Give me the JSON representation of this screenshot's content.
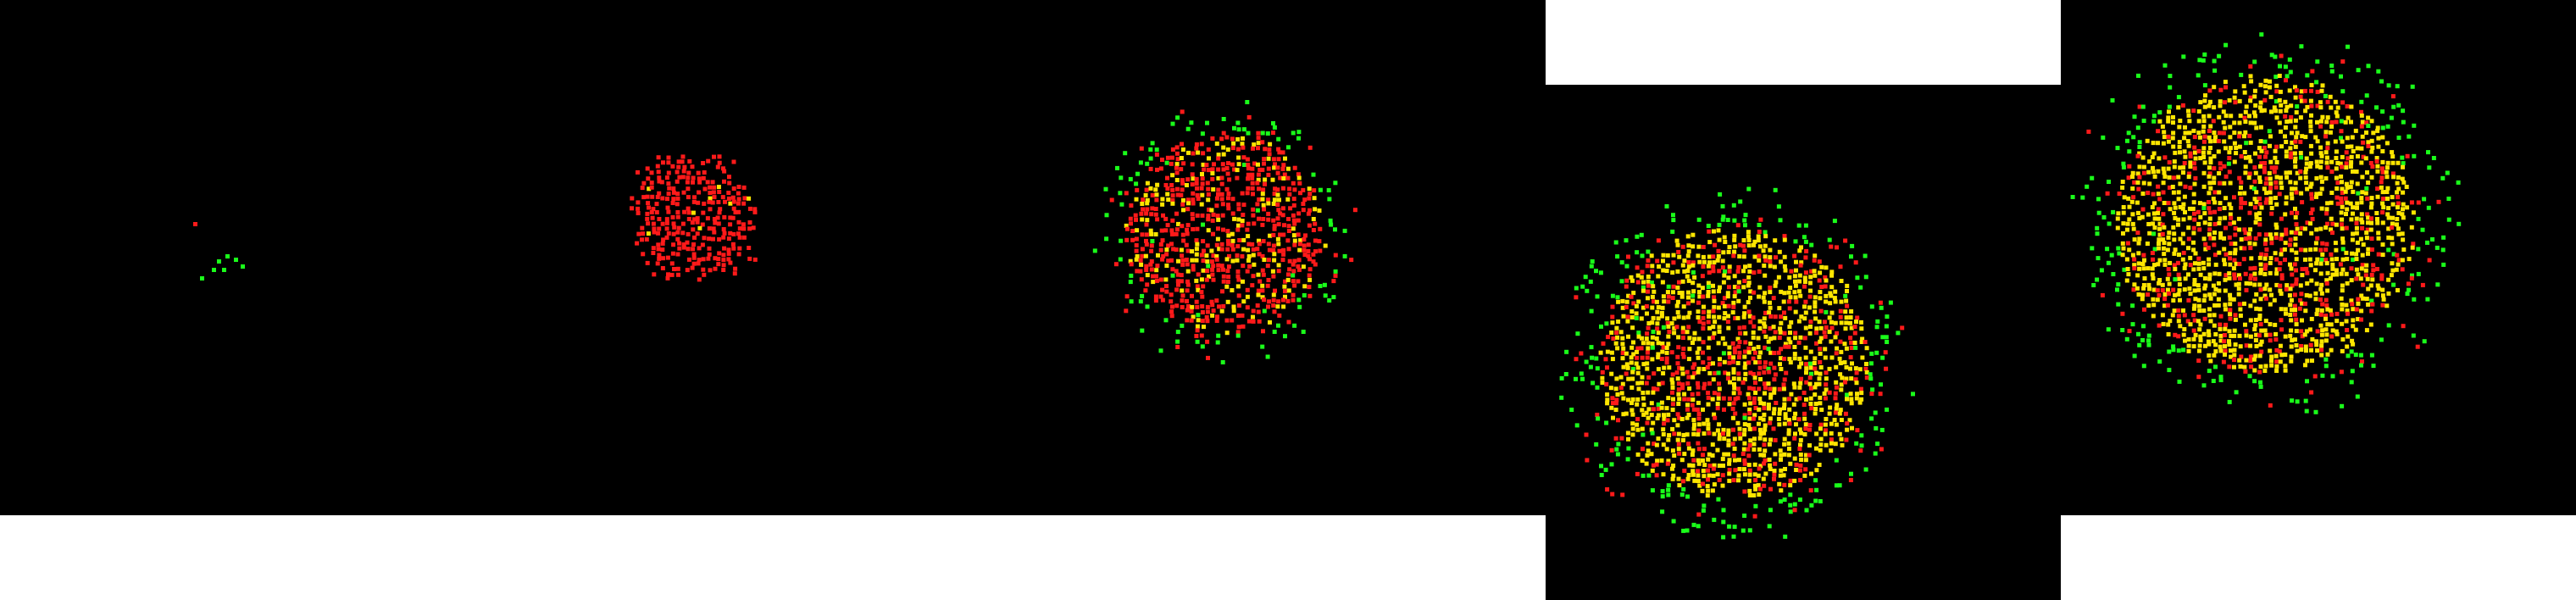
{
  "figure": {
    "kind": "simulation-snapshots",
    "panel_count": 5,
    "background_color": "#000000",
    "page_color": "#ffffff",
    "cell_colors": {
      "red": "#ff1a1a",
      "yellow": "#ffe600",
      "green": "#1aff1a"
    },
    "panels": [
      {
        "id": "snapshot-1",
        "growth_level": 0.03,
        "mix": {
          "red": 0.15,
          "yellow": 0.0,
          "green": 0.85
        }
      },
      {
        "id": "snapshot-2",
        "growth_level": 0.28,
        "mix": {
          "red": 0.96,
          "yellow": 0.02,
          "green": 0.02
        }
      },
      {
        "id": "snapshot-3",
        "growth_level": 0.55,
        "mix": {
          "red": 0.72,
          "yellow": 0.18,
          "green": 0.1
        }
      },
      {
        "id": "snapshot-4",
        "growth_level": 0.85,
        "mix": {
          "red": 0.22,
          "yellow": 0.58,
          "green": 0.2
        }
      },
      {
        "id": "snapshot-5",
        "growth_level": 0.92,
        "mix": {
          "red": 0.18,
          "yellow": 0.62,
          "green": 0.2
        }
      }
    ]
  }
}
